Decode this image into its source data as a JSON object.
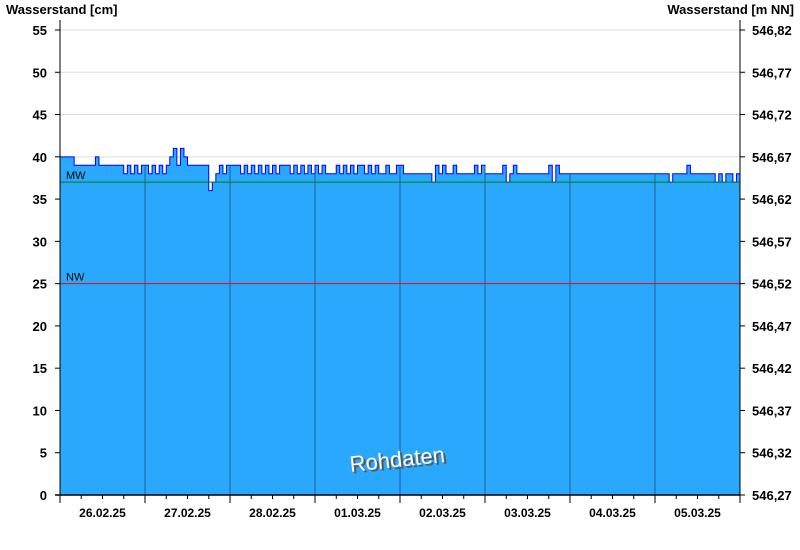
{
  "chart_data": {
    "type": "area",
    "ylabel_left": "Wasserstand [cm]",
    "ylabel_right": "Wasserstand [m NN]",
    "ylim": [
      0,
      55
    ],
    "yticks": [
      0,
      5,
      10,
      15,
      20,
      25,
      30,
      35,
      40,
      45,
      50,
      55
    ],
    "yticks_right": [
      "546,27",
      "546,32",
      "546,37",
      "546,42",
      "546,47",
      "546,52",
      "546,57",
      "546,62",
      "546,67",
      "546,72",
      "546,77",
      "546,82"
    ],
    "xtick_labels": [
      "26.02.25",
      "27.02.25",
      "28.02.25",
      "01.03.25",
      "02.03.25",
      "03.03.25",
      "04.03.25",
      "05.03.25"
    ],
    "grid": "horizontal",
    "watermark": "Rohdaten",
    "colors": {
      "fill": "#2aa8fe",
      "line": "#0000ff",
      "mw": "#008000",
      "nw": "#ff0000",
      "daylines": "#1f5f8a",
      "grid": "#dddddd"
    },
    "reference_lines": [
      {
        "label": "MW",
        "value": 37
      },
      {
        "label": "NW",
        "value": 25
      }
    ],
    "series": [
      {
        "date": "26.02.25",
        "hourly": [
          40,
          40,
          40,
          40,
          39,
          39,
          39,
          39,
          39,
          39,
          40,
          39,
          39,
          39,
          39,
          39,
          39,
          39,
          38,
          39,
          38,
          39,
          38,
          39
        ]
      },
      {
        "date": "27.02.25",
        "hourly": [
          39,
          38,
          39,
          38,
          39,
          38,
          39,
          40,
          41,
          39,
          41,
          40,
          39,
          39,
          39,
          39,
          39,
          39,
          36,
          37,
          38,
          39,
          38,
          39
        ]
      },
      {
        "date": "28.02.25",
        "hourly": [
          39,
          39,
          39,
          38,
          39,
          38,
          39,
          38,
          39,
          38,
          39,
          38,
          39,
          38,
          39,
          39,
          39,
          38,
          39,
          38,
          39,
          38,
          39,
          38
        ]
      },
      {
        "date": "01.03.25",
        "hourly": [
          39,
          38,
          39,
          38,
          38,
          38,
          39,
          38,
          39,
          38,
          39,
          38,
          39,
          39,
          38,
          39,
          38,
          39,
          38,
          38,
          39,
          38,
          38,
          39
        ]
      },
      {
        "date": "02.03.25",
        "hourly": [
          39,
          38,
          38,
          38,
          38,
          38,
          38,
          38,
          38,
          37,
          39,
          38,
          39,
          38,
          38,
          39,
          38,
          38,
          38,
          38,
          38,
          39,
          38,
          39
        ]
      },
      {
        "date": "03.03.25",
        "hourly": [
          38,
          38,
          38,
          38,
          38,
          39,
          37,
          38,
          39,
          38,
          38,
          38,
          38,
          38,
          38,
          38,
          38,
          38,
          39,
          37,
          39,
          38,
          38,
          38
        ]
      },
      {
        "date": "04.03.25",
        "hourly": [
          38,
          38,
          38,
          38,
          38,
          38,
          38,
          38,
          38,
          38,
          38,
          38,
          38,
          38,
          38,
          38,
          38,
          38,
          38,
          38,
          38,
          38,
          38,
          38
        ]
      },
      {
        "date": "05.03.25",
        "hourly": [
          38,
          38,
          38,
          38,
          37,
          38,
          38,
          38,
          38,
          39,
          38,
          38,
          38,
          38,
          38,
          38,
          38,
          37,
          38,
          37,
          38,
          38,
          37,
          38
        ]
      }
    ]
  }
}
